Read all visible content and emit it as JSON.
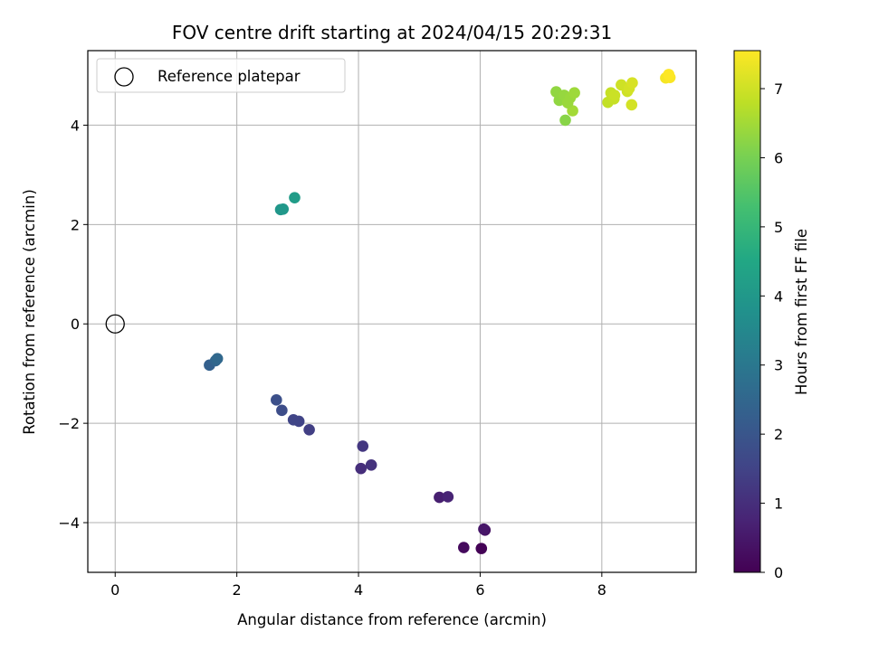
{
  "chart_data": {
    "type": "scatter",
    "title": "FOV centre drift starting at 2024/04/15 20:29:31",
    "xlabel": "Angular distance from reference (arcmin)",
    "ylabel": "Rotation from reference (arcmin)",
    "xlim": [
      -0.45,
      9.55
    ],
    "ylim": [
      -5.0,
      5.5
    ],
    "x_ticks": [
      0,
      2,
      4,
      6,
      8
    ],
    "y_ticks": [
      -4,
      -2,
      0,
      2,
      4
    ],
    "x_tick_labels": [
      "0",
      "2",
      "4",
      "6",
      "8"
    ],
    "y_tick_labels": [
      "−4",
      "−2",
      "0",
      "2",
      "4"
    ],
    "grid": true,
    "legend": {
      "placement": "upper-left",
      "entries": [
        {
          "label": "Reference platepar",
          "marker": "open-circle",
          "color": "#000000"
        }
      ]
    },
    "reference_point": {
      "x": 0,
      "y": 0
    },
    "colorbar": {
      "label": "Hours from first FF file",
      "colormap": "viridis",
      "range": [
        0,
        7.55
      ],
      "ticks": [
        0,
        1,
        2,
        3,
        4,
        5,
        6,
        7
      ],
      "tick_labels": [
        "0",
        "1",
        "2",
        "3",
        "4",
        "5",
        "6",
        "7"
      ]
    },
    "points": [
      {
        "x": 6.02,
        "y": -4.52,
        "hours": 0.05
      },
      {
        "x": 5.73,
        "y": -4.5,
        "hours": 0.2
      },
      {
        "x": 6.08,
        "y": -4.15,
        "hours": 0.35
      },
      {
        "x": 6.06,
        "y": -4.13,
        "hours": 0.45
      },
      {
        "x": 5.33,
        "y": -3.49,
        "hours": 0.65
      },
      {
        "x": 5.47,
        "y": -3.48,
        "hours": 0.75
      },
      {
        "x": 4.04,
        "y": -2.91,
        "hours": 1.0
      },
      {
        "x": 4.21,
        "y": -2.84,
        "hours": 1.1
      },
      {
        "x": 4.07,
        "y": -2.46,
        "hours": 1.2
      },
      {
        "x": 3.19,
        "y": -2.13,
        "hours": 1.4
      },
      {
        "x": 3.02,
        "y": -1.96,
        "hours": 1.5
      },
      {
        "x": 2.93,
        "y": -1.93,
        "hours": 1.55
      },
      {
        "x": 2.74,
        "y": -1.74,
        "hours": 1.75
      },
      {
        "x": 2.65,
        "y": -1.53,
        "hours": 1.85
      },
      {
        "x": 1.55,
        "y": -0.83,
        "hours": 2.3
      },
      {
        "x": 1.65,
        "y": -0.74,
        "hours": 2.45
      },
      {
        "x": 1.68,
        "y": -0.7,
        "hours": 2.55
      },
      {
        "x": 2.72,
        "y": 2.3,
        "hours": 3.95
      },
      {
        "x": 2.76,
        "y": 2.31,
        "hours": 4.0
      },
      {
        "x": 2.95,
        "y": 2.54,
        "hours": 4.15
      },
      {
        "x": 7.4,
        "y": 4.1,
        "hours": 6.2
      },
      {
        "x": 7.25,
        "y": 4.67,
        "hours": 6.3
      },
      {
        "x": 7.3,
        "y": 4.5,
        "hours": 6.3
      },
      {
        "x": 7.38,
        "y": 4.6,
        "hours": 6.35
      },
      {
        "x": 7.48,
        "y": 4.55,
        "hours": 6.4
      },
      {
        "x": 7.55,
        "y": 4.65,
        "hours": 6.45
      },
      {
        "x": 7.52,
        "y": 4.29,
        "hours": 6.5
      },
      {
        "x": 7.44,
        "y": 4.45,
        "hours": 6.4
      },
      {
        "x": 8.1,
        "y": 4.46,
        "hours": 6.85
      },
      {
        "x": 8.15,
        "y": 4.65,
        "hours": 6.9
      },
      {
        "x": 8.2,
        "y": 4.53,
        "hours": 6.9
      },
      {
        "x": 8.21,
        "y": 4.6,
        "hours": 6.95
      },
      {
        "x": 8.32,
        "y": 4.81,
        "hours": 7.0
      },
      {
        "x": 8.42,
        "y": 4.68,
        "hours": 7.0
      },
      {
        "x": 8.45,
        "y": 4.74,
        "hours": 7.05
      },
      {
        "x": 8.5,
        "y": 4.85,
        "hours": 7.1
      },
      {
        "x": 8.49,
        "y": 4.41,
        "hours": 7.05
      },
      {
        "x": 9.05,
        "y": 4.95,
        "hours": 7.45
      },
      {
        "x": 9.12,
        "y": 4.96,
        "hours": 7.5
      },
      {
        "x": 9.1,
        "y": 5.02,
        "hours": 7.55
      }
    ]
  }
}
